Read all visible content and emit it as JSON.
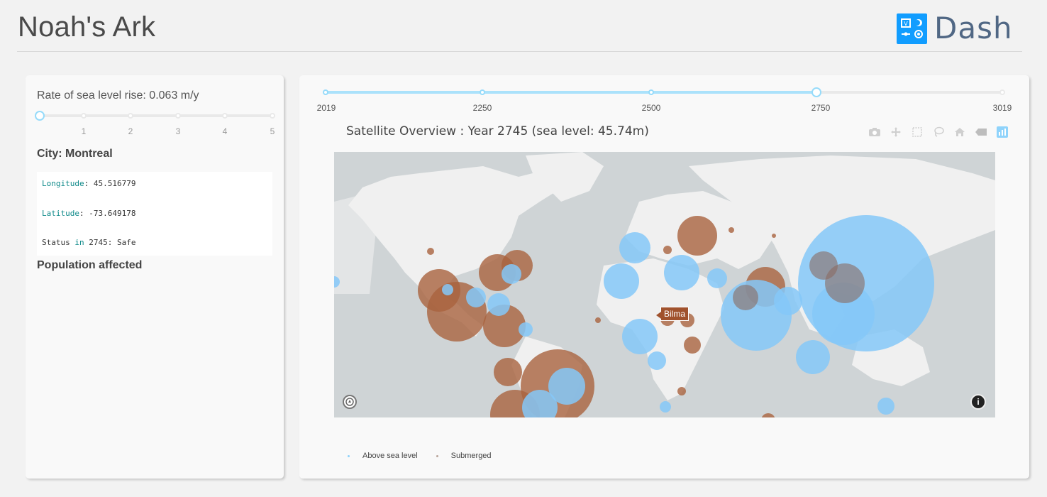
{
  "header": {
    "title": "Noah's Ark",
    "logo_text": "Dash"
  },
  "controls": {
    "rate_label": "Rate of sea level rise: 0.063 m/y",
    "rate_value": 0.063,
    "rate_min": 0,
    "rate_max": 5,
    "rate_marks": [
      "1",
      "2",
      "3",
      "4",
      "5"
    ],
    "city_title": "City: Montreal",
    "info": {
      "longitude_key": "Longitude",
      "longitude_value": ": 45.516779",
      "latitude_key": "Latitude",
      "latitude_value": ": -73.649178",
      "status_prefix": "Status ",
      "status_in": "in",
      "status_suffix": " 2745: Safe"
    },
    "population_title": "Population affected"
  },
  "year_slider": {
    "min": 2019,
    "max": 3019,
    "value": 2745,
    "marks": [
      "2019",
      "2250",
      "2500",
      "2750",
      "3019"
    ]
  },
  "map": {
    "title": "Satellite Overview : Year 2745 (sea level: 45.74m)",
    "tooltip": "Bilma",
    "legend": [
      {
        "label": "Above sea level",
        "color": "#8fd3fb"
      },
      {
        "label": "Submerged",
        "color": "#b9a59b"
      }
    ],
    "colors": {
      "above": "#85c8f8",
      "submerged": "#a9633f",
      "land": "#f0f0f0",
      "water": "#cfd4d6"
    },
    "modebar": [
      "camera-icon",
      "pan-icon",
      "box-select-icon",
      "lasso-icon",
      "home-icon",
      "tag-icon",
      "plotly-logo-icon"
    ]
  }
}
